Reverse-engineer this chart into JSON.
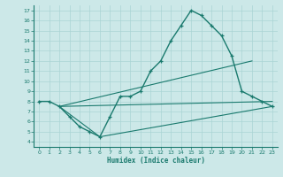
{
  "xlabel": "Humidex (Indice chaleur)",
  "bg_color": "#cce8e8",
  "grid_color": "#aad4d4",
  "line_color": "#1a7a6e",
  "xlim": [
    -0.5,
    23.5
  ],
  "ylim": [
    3.5,
    17.5
  ],
  "xticks": [
    0,
    1,
    2,
    3,
    4,
    5,
    6,
    7,
    8,
    9,
    10,
    11,
    12,
    13,
    14,
    15,
    16,
    17,
    18,
    19,
    20,
    21,
    22,
    23
  ],
  "yticks": [
    4,
    5,
    6,
    7,
    8,
    9,
    10,
    11,
    12,
    13,
    14,
    15,
    16,
    17
  ],
  "main_curve_x": [
    0,
    1,
    2,
    3,
    4,
    5,
    6,
    7,
    8,
    9,
    10,
    11,
    12,
    13,
    14,
    15,
    16,
    17,
    18,
    19,
    20,
    21,
    22,
    23
  ],
  "main_curve_y": [
    8.0,
    8.0,
    7.5,
    6.5,
    5.5,
    5.0,
    4.5,
    6.5,
    8.5,
    8.5,
    9.0,
    11.0,
    12.0,
    14.0,
    15.5,
    17.0,
    16.5,
    15.5,
    14.5,
    12.5,
    9.0,
    8.5,
    8.0,
    7.5
  ],
  "line1_x": [
    2,
    21
  ],
  "line1_y": [
    7.5,
    12.0
  ],
  "line2_x": [
    2,
    23
  ],
  "line2_y": [
    7.5,
    8.0
  ],
  "line3_x": [
    2,
    6,
    23
  ],
  "line3_y": [
    7.5,
    4.5,
    7.5
  ]
}
